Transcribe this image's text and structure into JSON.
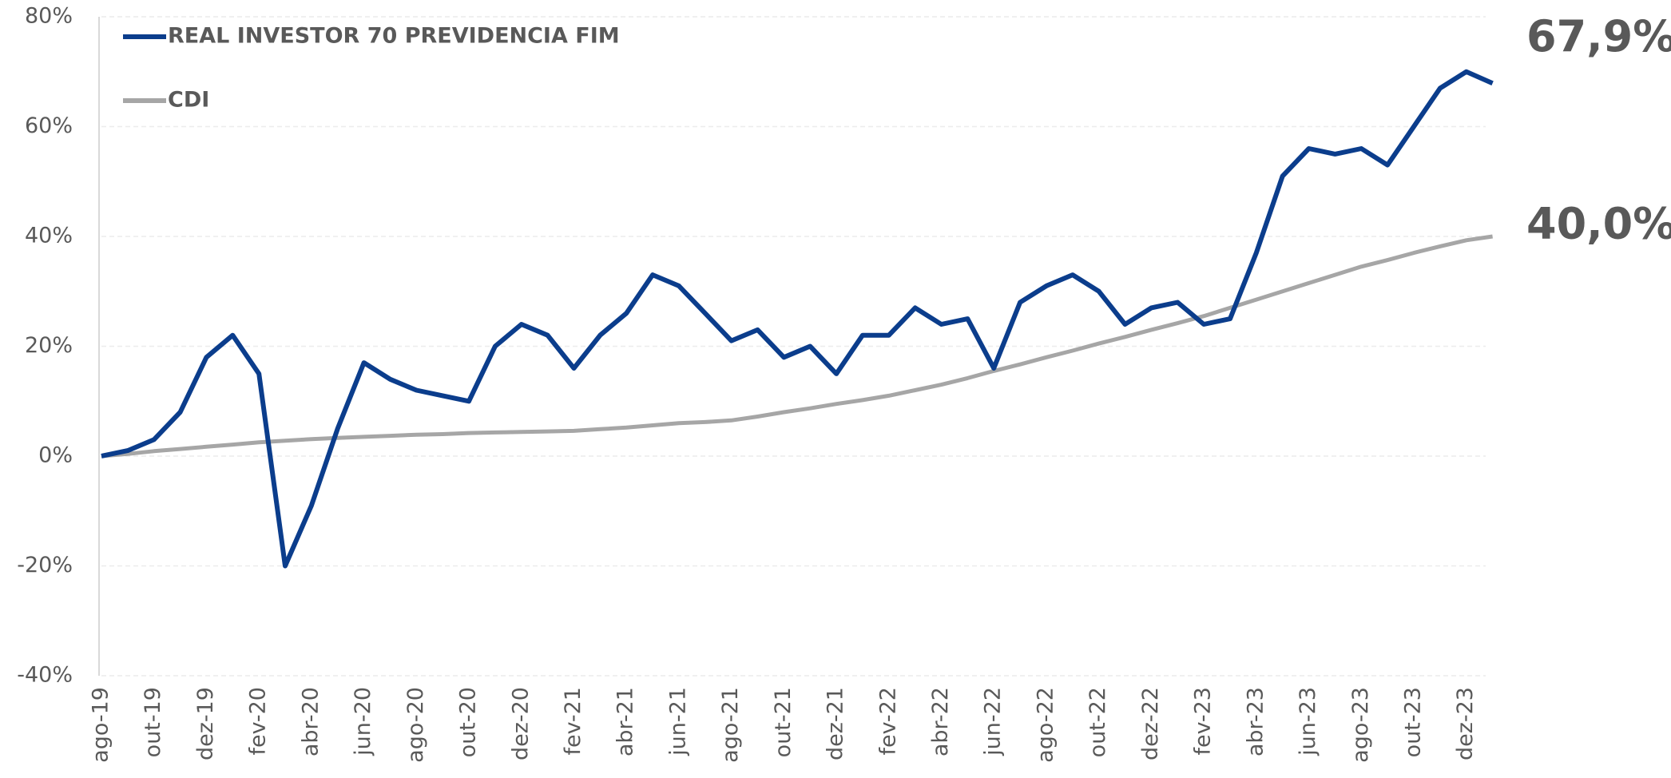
{
  "chart_data": {
    "type": "line",
    "categories": [
      "ago-19",
      null,
      "out-19",
      null,
      "dez-19",
      null,
      "fev-20",
      null,
      "abr-20",
      null,
      "jun-20",
      null,
      "ago-20",
      null,
      "out-20",
      null,
      "dez-20",
      null,
      "fev-21",
      null,
      "abr-21",
      null,
      "jun-21",
      null,
      "ago-21",
      null,
      "out-21",
      null,
      "dez-21",
      null,
      "fev-22",
      null,
      "abr-22",
      null,
      "jun-22",
      null,
      "ago-22",
      null,
      "out-22",
      null,
      "dez-22",
      null,
      "fev-23",
      null,
      "abr-23",
      null,
      "jun-23",
      null,
      "ago-23",
      null,
      "out-23",
      null,
      "dez-23",
      null
    ],
    "series": [
      {
        "name": "REAL INVESTOR 70 PREVIDENCIA FIM",
        "color": "#0b3d8c",
        "last_label": "67,9%",
        "values": [
          0,
          1,
          3,
          8,
          18,
          22,
          15,
          -20,
          -9,
          5,
          17,
          14,
          12,
          11,
          10,
          20,
          24,
          22,
          16,
          22,
          26,
          33,
          31,
          26,
          21,
          23,
          18,
          20,
          15,
          22,
          22,
          27,
          24,
          25,
          16,
          28,
          31,
          33,
          30,
          24,
          27,
          28,
          24,
          25,
          37,
          51,
          56,
          55,
          56,
          53,
          60,
          67,
          70,
          67.9
        ]
      },
      {
        "name": "CDI",
        "color": "#a6a6a6",
        "last_label": "40,0%",
        "values": [
          0,
          0.4,
          0.9,
          1.3,
          1.7,
          2.1,
          2.5,
          2.8,
          3.1,
          3.3,
          3.5,
          3.7,
          3.9,
          4.0,
          4.2,
          4.3,
          4.4,
          4.5,
          4.6,
          4.9,
          5.2,
          5.6,
          6.0,
          6.2,
          6.5,
          7.2,
          8.0,
          8.7,
          9.5,
          10.2,
          11.0,
          12.0,
          13.0,
          14.2,
          15.5,
          16.7,
          18.0,
          19.2,
          20.5,
          21.7,
          23.0,
          24.2,
          25.5,
          27.0,
          28.5,
          30.0,
          31.5,
          33.0,
          34.5,
          35.7,
          37.0,
          38.2,
          39.3,
          40.0
        ]
      }
    ],
    "ylim": [
      -40,
      80
    ],
    "yticks": [
      {
        "value": -40,
        "label": "-40%"
      },
      {
        "value": -20,
        "label": "-20%"
      },
      {
        "value": 0,
        "label": "0%"
      },
      {
        "value": 20,
        "label": "20%"
      },
      {
        "value": 40,
        "label": "40%"
      },
      {
        "value": 60,
        "label": "60%"
      },
      {
        "value": 80,
        "label": "80%"
      }
    ],
    "grid": true
  }
}
